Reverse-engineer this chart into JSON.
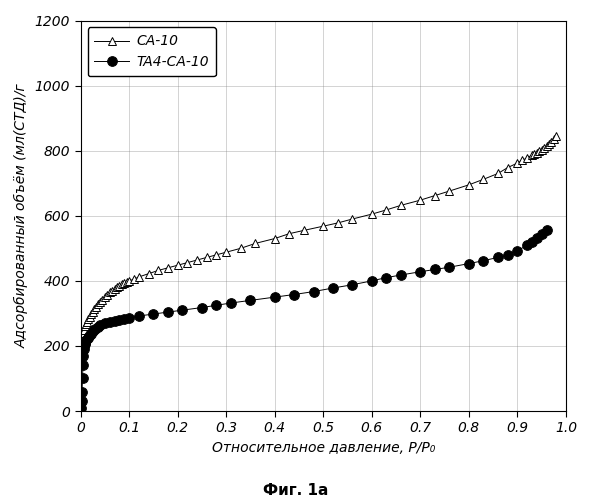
{
  "xlabel": "Относительное давление, P/P₀",
  "ylabel": "Адсорбированный объём (мл(СТД)/г",
  "fig_label": "Фиг. 1а",
  "legend_labels": [
    "CA-10",
    "TA4-CA-10"
  ],
  "xlim": [
    0.0,
    1.0
  ],
  "ylim": [
    0,
    1200
  ],
  "xticks": [
    0.0,
    0.1,
    0.2,
    0.3,
    0.4,
    0.5,
    0.6,
    0.7,
    0.8,
    0.9,
    1.0
  ],
  "yticks": [
    0,
    200,
    400,
    600,
    800,
    1000,
    1200
  ],
  "xtick_labels": [
    "0",
    "0.1",
    "0.2",
    "0.3",
    "0.4",
    "0.5",
    "0.6",
    "0.7",
    "0.8",
    "0.9",
    "1.0"
  ],
  "background_color": "#ffffff",
  "ca10_x": [
    0.003,
    0.005,
    0.007,
    0.009,
    0.011,
    0.013,
    0.016,
    0.019,
    0.022,
    0.025,
    0.028,
    0.032,
    0.036,
    0.04,
    0.045,
    0.05,
    0.055,
    0.06,
    0.065,
    0.07,
    0.075,
    0.08,
    0.085,
    0.09,
    0.095,
    0.1,
    0.11,
    0.12,
    0.14,
    0.16,
    0.18,
    0.2,
    0.22,
    0.24,
    0.26,
    0.28,
    0.3,
    0.33,
    0.36,
    0.4,
    0.43,
    0.46,
    0.5,
    0.53,
    0.56,
    0.6,
    0.63,
    0.66,
    0.7,
    0.73,
    0.76,
    0.8,
    0.83,
    0.86,
    0.88,
    0.9,
    0.91,
    0.92,
    0.93,
    0.935,
    0.94,
    0.945,
    0.95,
    0.955,
    0.96,
    0.965,
    0.97,
    0.975,
    0.98
  ],
  "ca10_y": [
    230,
    240,
    250,
    260,
    268,
    275,
    282,
    290,
    298,
    305,
    312,
    320,
    328,
    335,
    342,
    350,
    358,
    365,
    370,
    375,
    380,
    385,
    390,
    393,
    396,
    400,
    405,
    412,
    422,
    432,
    440,
    448,
    456,
    464,
    472,
    480,
    488,
    500,
    515,
    530,
    545,
    555,
    568,
    578,
    590,
    605,
    618,
    632,
    648,
    662,
    676,
    695,
    712,
    730,
    748,
    762,
    770,
    778,
    786,
    790,
    794,
    798,
    802,
    808,
    814,
    820,
    828,
    836,
    845
  ],
  "ta4_x": [
    0.001,
    0.002,
    0.003,
    0.004,
    0.005,
    0.006,
    0.007,
    0.008,
    0.009,
    0.01,
    0.012,
    0.015,
    0.018,
    0.021,
    0.025,
    0.03,
    0.035,
    0.04,
    0.05,
    0.06,
    0.07,
    0.08,
    0.09,
    0.1,
    0.12,
    0.15,
    0.18,
    0.21,
    0.25,
    0.28,
    0.31,
    0.35,
    0.4,
    0.44,
    0.48,
    0.52,
    0.56,
    0.6,
    0.63,
    0.66,
    0.7,
    0.73,
    0.76,
    0.8,
    0.83,
    0.86,
    0.88,
    0.9,
    0.92,
    0.93,
    0.94,
    0.95,
    0.96
  ],
  "ta4_y": [
    10,
    30,
    60,
    100,
    140,
    170,
    190,
    200,
    205,
    210,
    218,
    225,
    232,
    238,
    245,
    252,
    258,
    263,
    270,
    275,
    278,
    281,
    284,
    287,
    292,
    298,
    304,
    310,
    318,
    325,
    332,
    340,
    350,
    358,
    367,
    378,
    388,
    400,
    410,
    418,
    428,
    435,
    442,
    453,
    462,
    472,
    480,
    492,
    510,
    520,
    533,
    543,
    555
  ]
}
